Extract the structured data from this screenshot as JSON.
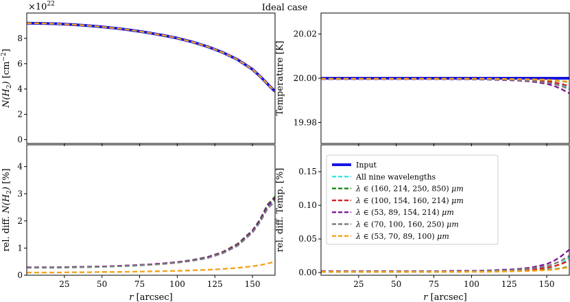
{
  "chart_data": {
    "type": "line",
    "title": "Ideal case",
    "x": [
      0,
      10,
      20,
      30,
      40,
      50,
      60,
      70,
      80,
      90,
      100,
      110,
      120,
      130,
      140,
      150,
      155,
      160,
      165
    ],
    "xlim": [
      0,
      165
    ],
    "xticks": [
      "25",
      "50",
      "75",
      "100",
      "125",
      "150"
    ],
    "xlabel_prefix": "r",
    "xlabel_suffix": "[arcsec]",
    "colors": {
      "input": "#1515e0",
      "all": "#36e3e3",
      "s1": "#138a13",
      "s2": "#e01c1c",
      "s3": "#7a1a96",
      "s4": "#7c7c7c",
      "s5": "#f5a21b"
    },
    "legend": {
      "input": "Input",
      "all": "All nine wavelengths",
      "s1": "(160, 214, 250, 850)",
      "s2": "(100, 154, 160, 214)",
      "s3": "(53, 89, 154, 214)",
      "s4": "(70, 100, 160, 250)",
      "s5": "(53, 70, 89, 100)",
      "lambda": "λ",
      "in": "∈",
      "unit": "μm"
    },
    "panels": {
      "column_density": {
        "ylim": [
          -0.3,
          10
        ],
        "yticks": [
          "0",
          "2",
          "4",
          "6",
          "8"
        ],
        "ylabel_sym": "N(H",
        "ylabel_sub": "2",
        "ylabel_close": ")",
        "ylabel_unit": "[cm",
        "ylabel_exp": "−2",
        "ylabel_end": "]",
        "offset_base": "×10",
        "offset_exp": "22",
        "input": [
          9.2,
          9.18,
          9.15,
          9.09,
          9.01,
          8.91,
          8.79,
          8.64,
          8.46,
          8.25,
          8.02,
          7.72,
          7.35,
          6.9,
          6.33,
          5.55,
          5.01,
          4.4,
          3.8
        ]
      },
      "temperature": {
        "ylim": [
          19.9705,
          20.0295
        ],
        "yticks": [
          "19.98",
          "20.00",
          "20.02"
        ],
        "ylabel": "Temperature [K]",
        "input": [
          20.0,
          20.0,
          20.0,
          20.0,
          20.0,
          20.0,
          20.0,
          20.0,
          20.0,
          20.0,
          20.0,
          20.0,
          20.0,
          20.0,
          20.0,
          20.0,
          20.0,
          20.0,
          20.0
        ],
        "all": [
          19.9998,
          19.9998,
          19.9998,
          19.9998,
          19.9998,
          19.9998,
          19.9998,
          19.9998,
          19.9998,
          19.9997,
          19.9997,
          19.9997,
          19.9996,
          19.9995,
          19.9993,
          19.9988,
          19.9982,
          19.9972,
          19.9955
        ],
        "s1": [
          19.9998,
          19.9998,
          19.9998,
          19.9998,
          19.9998,
          19.9998,
          19.9998,
          19.9998,
          19.9998,
          19.9998,
          19.9997,
          19.9997,
          19.9996,
          19.9995,
          19.9994,
          19.9992,
          19.999,
          19.9987,
          19.9982
        ],
        "s2": [
          19.9997,
          19.9997,
          19.9997,
          19.9997,
          19.9997,
          19.9997,
          19.9997,
          19.9997,
          19.9997,
          19.9997,
          19.9997,
          19.9996,
          19.9996,
          19.9994,
          19.9991,
          19.9986,
          19.9981,
          19.9974,
          19.9964
        ],
        "s3": [
          19.9996,
          19.9996,
          19.9996,
          19.9996,
          19.9996,
          19.9996,
          19.9996,
          19.9996,
          19.9996,
          19.9995,
          19.9995,
          19.9994,
          19.9992,
          19.999,
          19.9985,
          19.9975,
          19.9965,
          19.995,
          19.9932
        ],
        "s4": [
          19.9997,
          19.9997,
          19.9997,
          19.9997,
          19.9997,
          19.9997,
          19.9997,
          19.9997,
          19.9997,
          19.9997,
          19.9996,
          19.9995,
          19.9994,
          19.9992,
          19.9988,
          19.9981,
          19.9974,
          19.9964,
          19.995
        ],
        "s5": [
          19.9998,
          19.9998,
          19.9998,
          19.9998,
          19.9998,
          19.9998,
          19.9998,
          19.9998,
          19.9998,
          19.9998,
          19.9998,
          19.9998,
          19.9997,
          19.9996,
          19.9995,
          19.9993,
          19.9991,
          19.9988,
          19.9984
        ]
      },
      "rel_diff_column_density": {
        "ylim": [
          0,
          4.8
        ],
        "yticks": [
          "0",
          "1",
          "2",
          "3",
          "4"
        ],
        "ylabel_pre": "rel. diff.",
        "ylabel_sym": "N(H",
        "ylabel_sub": "2",
        "ylabel_close": ")",
        "ylabel_unit": "[%]",
        "all": [
          0.28,
          0.28,
          0.28,
          0.29,
          0.3,
          0.31,
          0.33,
          0.35,
          0.38,
          0.42,
          0.47,
          0.54,
          0.65,
          0.82,
          1.1,
          1.6,
          2.0,
          2.5,
          2.8
        ],
        "s1": [
          0.29,
          0.29,
          0.29,
          0.3,
          0.31,
          0.32,
          0.34,
          0.36,
          0.39,
          0.43,
          0.48,
          0.56,
          0.67,
          0.85,
          1.15,
          1.65,
          2.05,
          2.6,
          2.9
        ],
        "s2": [
          0.29,
          0.29,
          0.29,
          0.3,
          0.31,
          0.32,
          0.34,
          0.36,
          0.39,
          0.43,
          0.48,
          0.55,
          0.66,
          0.84,
          1.13,
          1.63,
          2.03,
          2.56,
          2.85
        ],
        "s3": [
          0.29,
          0.29,
          0.29,
          0.3,
          0.31,
          0.32,
          0.34,
          0.36,
          0.39,
          0.43,
          0.48,
          0.55,
          0.66,
          0.83,
          1.12,
          1.62,
          2.02,
          2.55,
          2.83
        ],
        "s4": [
          0.28,
          0.28,
          0.28,
          0.29,
          0.3,
          0.31,
          0.33,
          0.35,
          0.38,
          0.41,
          0.46,
          0.53,
          0.63,
          0.8,
          1.08,
          1.57,
          1.95,
          2.45,
          2.72
        ],
        "s5": [
          0.1,
          0.1,
          0.1,
          0.11,
          0.11,
          0.12,
          0.12,
          0.13,
          0.14,
          0.15,
          0.16,
          0.18,
          0.2,
          0.23,
          0.27,
          0.33,
          0.37,
          0.43,
          0.5
        ]
      },
      "rel_diff_temperature": {
        "ylim": [
          -0.004,
          0.19
        ],
        "yticks": [
          "0.00",
          "0.05",
          "0.10",
          "0.15"
        ],
        "ylabel": "rel. diff. Temp. [%]",
        "all": [
          0.001,
          0.001,
          0.001,
          0.001,
          0.001,
          0.001,
          0.001,
          0.001,
          0.001,
          0.0015,
          0.0015,
          0.0015,
          0.002,
          0.0025,
          0.0035,
          0.006,
          0.009,
          0.014,
          0.0225
        ],
        "s1": [
          0.001,
          0.001,
          0.001,
          0.001,
          0.001,
          0.001,
          0.001,
          0.001,
          0.001,
          0.001,
          0.0015,
          0.0015,
          0.002,
          0.0025,
          0.003,
          0.004,
          0.005,
          0.0065,
          0.009
        ],
        "s2": [
          0.0015,
          0.0015,
          0.0015,
          0.0015,
          0.0015,
          0.0015,
          0.0015,
          0.0015,
          0.0015,
          0.0015,
          0.0015,
          0.002,
          0.002,
          0.003,
          0.0045,
          0.007,
          0.0095,
          0.013,
          0.018
        ],
        "s3": [
          0.002,
          0.002,
          0.002,
          0.002,
          0.002,
          0.002,
          0.002,
          0.002,
          0.002,
          0.0025,
          0.0025,
          0.003,
          0.004,
          0.005,
          0.0075,
          0.0125,
          0.0175,
          0.025,
          0.034
        ],
        "s4": [
          0.0015,
          0.0015,
          0.0015,
          0.0015,
          0.0015,
          0.0015,
          0.0015,
          0.0015,
          0.0015,
          0.0015,
          0.002,
          0.0025,
          0.003,
          0.004,
          0.006,
          0.0095,
          0.013,
          0.018,
          0.025
        ],
        "s5": [
          0.001,
          0.001,
          0.001,
          0.001,
          0.001,
          0.001,
          0.001,
          0.001,
          0.001,
          0.001,
          0.001,
          0.001,
          0.0015,
          0.002,
          0.0025,
          0.0035,
          0.0045,
          0.006,
          0.008
        ]
      }
    }
  }
}
